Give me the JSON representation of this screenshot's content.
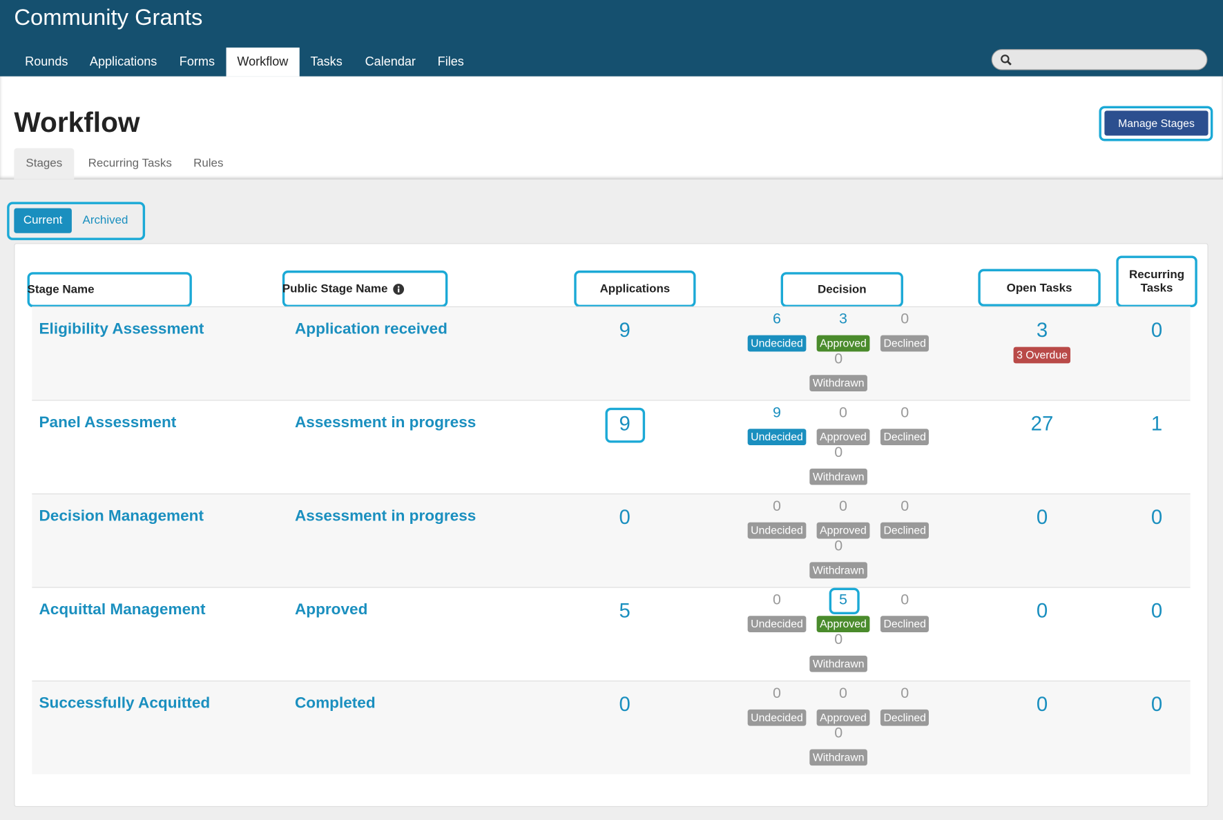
{
  "header": {
    "title": "Community Grants",
    "nav": [
      "Rounds",
      "Applications",
      "Forms",
      "Workflow",
      "Tasks",
      "Calendar",
      "Files"
    ]
  },
  "page": {
    "title": "Workflow",
    "button": "Manage Stages",
    "tabs": [
      "Stages",
      "Recurring Tasks",
      "Rules"
    ],
    "toggle": [
      "Current",
      "Archived"
    ]
  },
  "table": {
    "columns": [
      "Stage Name",
      "Public Stage Name",
      "Applications",
      "Decision",
      "Open Tasks",
      "Recurring Tasks"
    ],
    "decision_labels": [
      "Undecided",
      "Approved",
      "Declined",
      "Withdrawn"
    ],
    "rows": [
      {
        "stage": "Eligibility Assessment",
        "public": "Application received",
        "applications": 9,
        "decision": [
          6,
          3,
          0,
          0
        ],
        "open_tasks": 3,
        "overdue": "3 Overdue",
        "recurring": 0
      },
      {
        "stage": "Panel Assessment",
        "public": "Assessment in progress",
        "applications": 9,
        "decision": [
          9,
          0,
          0,
          0
        ],
        "open_tasks": 27,
        "recurring": 1
      },
      {
        "stage": "Decision Management",
        "public": "Assessment in progress",
        "applications": 0,
        "decision": [
          0,
          0,
          0,
          0
        ],
        "open_tasks": 0,
        "recurring": 0
      },
      {
        "stage": "Acquittal Management",
        "public": "Approved",
        "applications": 5,
        "decision": [
          0,
          5,
          0,
          0
        ],
        "open_tasks": 0,
        "recurring": 0
      },
      {
        "stage": "Successfully Acquitted",
        "public": "Completed",
        "applications": 0,
        "decision": [
          0,
          0,
          0,
          0
        ],
        "open_tasks": 0,
        "recurring": 0
      }
    ]
  }
}
